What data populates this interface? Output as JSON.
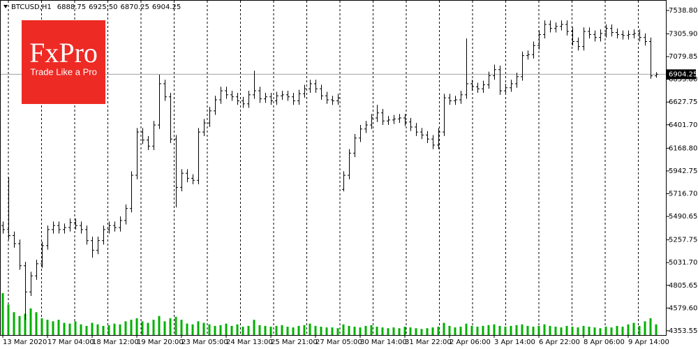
{
  "logo": {
    "brand": "FxPro",
    "tagline": "Trade Like a Pro"
  },
  "chart_data": {
    "type": "ohlc",
    "header": {
      "symbol": "BTCUSD,H1",
      "ohlc_printed": [
        "6888.75",
        "6925.50",
        "6870.25",
        "6904.25"
      ]
    },
    "categories": [
      "13 Mar 2020",
      null,
      null,
      null,
      null,
      null,
      null,
      null,
      "17 Mar 04:00",
      null,
      null,
      null,
      null,
      null,
      null,
      null,
      "18 Mar 12:00",
      null,
      null,
      null,
      null,
      null,
      null,
      null,
      "19 Mar 20:00",
      null,
      null,
      null,
      null,
      null,
      null,
      null,
      "23 Mar 05:00",
      null,
      null,
      null,
      null,
      null,
      null,
      null,
      "24 Mar 13:00",
      null,
      null,
      null,
      null,
      null,
      null,
      null,
      "25 Mar 21:00",
      null,
      null,
      null,
      null,
      null,
      null,
      null,
      "27 Mar 05:00",
      null,
      null,
      null,
      null,
      null,
      null,
      null,
      "30 Mar 14:00",
      null,
      null,
      null,
      null,
      null,
      null,
      null,
      "31 Mar 22:00",
      null,
      null,
      null,
      null,
      null,
      null,
      null,
      "2 Apr 06:00",
      null,
      null,
      null,
      null,
      null,
      null,
      null,
      "3 Apr 14:00",
      null,
      null,
      null,
      null,
      null,
      null,
      null,
      "6 Apr 22:00",
      null,
      null,
      null,
      null,
      null,
      null,
      null,
      "8 Apr 06:00",
      null,
      null,
      null,
      null,
      null,
      null,
      null,
      "9 Apr 14:00",
      null,
      null,
      null,
      null,
      null
    ],
    "open": [
      5400,
      5360,
      5300,
      5220,
      5000,
      4740,
      4900,
      5020,
      5200,
      5360,
      5400,
      5360,
      5380,
      5430,
      5400,
      5360,
      5250,
      5155,
      5250,
      5360,
      5400,
      5380,
      5450,
      5570,
      5900,
      6330,
      6250,
      6190,
      6400,
      6810,
      6680,
      6260,
      5780,
      5920,
      5870,
      5850,
      6330,
      6420,
      6540,
      6650,
      6740,
      6700,
      6680,
      6640,
      6610,
      6700,
      6740,
      6660,
      6680,
      6640,
      6690,
      6700,
      6680,
      6640,
      6710,
      6760,
      6810,
      6760,
      6690,
      6650,
      6640,
      5760,
      5900,
      6120,
      6270,
      6360,
      6400,
      6470,
      6520,
      6440,
      6450,
      6460,
      6470,
      6430,
      6380,
      6330,
      6300,
      6260,
      6200,
      6330,
      6670,
      6640,
      6650,
      6700,
      6810,
      6780,
      6760,
      6800,
      6890,
      6950,
      6740,
      6770,
      6810,
      6880,
      7090,
      7100,
      7190,
      7300,
      7400,
      7360,
      7380,
      7400,
      7330,
      7230,
      7180,
      7330,
      7300,
      7270,
      7310,
      7360,
      7320,
      7300,
      7290,
      7300,
      7310,
      7270,
      7230,
      6888.75
    ],
    "high": [
      5440,
      5880,
      5340,
      5260,
      5040,
      4940,
      5060,
      5240,
      5400,
      5440,
      5440,
      5420,
      5470,
      5470,
      5440,
      5400,
      5290,
      5290,
      5400,
      5440,
      5440,
      5490,
      5610,
      5940,
      6370,
      6370,
      6290,
      6440,
      6900,
      6850,
      6720,
      6300,
      5960,
      5960,
      5910,
      6370,
      6460,
      6580,
      6690,
      6780,
      6780,
      6740,
      6720,
      6680,
      6740,
      6940,
      6780,
      6720,
      6720,
      6730,
      6740,
      6740,
      6720,
      6750,
      6800,
      6850,
      6850,
      6800,
      6730,
      6690,
      6710,
      5940,
      6160,
      6310,
      6400,
      6440,
      6510,
      6600,
      6560,
      6490,
      6500,
      6510,
      6510,
      6470,
      6420,
      6370,
      6340,
      6300,
      6370,
      6710,
      6710,
      6690,
      6740,
      7260,
      6850,
      6820,
      6840,
      6930,
      7000,
      6990,
      6810,
      6850,
      6920,
      7130,
      7140,
      7230,
      7340,
      7440,
      7440,
      7420,
      7440,
      7440,
      7370,
      7270,
      7370,
      7370,
      7340,
      7350,
      7400,
      7400,
      7360,
      7340,
      7340,
      7350,
      7350,
      7310,
      7270,
      6925.5
    ],
    "low": [
      5320,
      5260,
      5180,
      4960,
      4460,
      4700,
      4860,
      4980,
      5160,
      5320,
      5320,
      5320,
      5340,
      5360,
      5320,
      5210,
      5080,
      5115,
      5210,
      5320,
      5340,
      5340,
      5410,
      5530,
      5860,
      6210,
      6150,
      6150,
      6360,
      6640,
      6220,
      5580,
      5740,
      5830,
      5810,
      5810,
      6290,
      6380,
      6500,
      6610,
      6660,
      6640,
      6600,
      6570,
      6570,
      6660,
      6620,
      6620,
      6600,
      6600,
      6650,
      6640,
      6600,
      6600,
      6670,
      6720,
      6720,
      6650,
      6610,
      6600,
      6600,
      5740,
      5860,
      6080,
      6230,
      6320,
      6360,
      6430,
      6400,
      6400,
      6410,
      6420,
      6390,
      6340,
      6290,
      6260,
      6220,
      6160,
      6160,
      6290,
      6600,
      6600,
      6610,
      6660,
      6740,
      6720,
      6720,
      6760,
      6850,
      6700,
      6700,
      6730,
      6770,
      6840,
      7050,
      7060,
      7150,
      7260,
      7320,
      7320,
      7340,
      7290,
      7190,
      7140,
      7140,
      7260,
      7230,
      7230,
      7270,
      7280,
      7260,
      7250,
      7250,
      7260,
      7230,
      7190,
      6860,
      6870.25
    ],
    "close": [
      5360,
      5300,
      5220,
      5000,
      4740,
      4900,
      5020,
      5200,
      5360,
      5400,
      5360,
      5380,
      5430,
      5400,
      5360,
      5250,
      5155,
      5250,
      5360,
      5400,
      5380,
      5450,
      5570,
      5900,
      6330,
      6250,
      6190,
      6400,
      6810,
      6680,
      6260,
      5780,
      5920,
      5870,
      5850,
      6330,
      6420,
      6540,
      6650,
      6740,
      6700,
      6680,
      6640,
      6610,
      6700,
      6740,
      6660,
      6680,
      6640,
      6690,
      6700,
      6680,
      6640,
      6710,
      6760,
      6810,
      6760,
      6690,
      6650,
      6640,
      6670,
      5900,
      6120,
      6270,
      6360,
      6400,
      6470,
      6520,
      6440,
      6450,
      6460,
      6470,
      6430,
      6380,
      6330,
      6300,
      6260,
      6200,
      6330,
      6670,
      6640,
      6650,
      6700,
      6810,
      6780,
      6760,
      6800,
      6890,
      6950,
      6740,
      6770,
      6810,
      6880,
      7090,
      7100,
      7190,
      7300,
      7400,
      7360,
      7380,
      7400,
      7330,
      7230,
      7180,
      7330,
      7300,
      7270,
      7310,
      7360,
      7320,
      7300,
      7290,
      7300,
      7310,
      7270,
      7230,
      6888.75,
      6904.25
    ],
    "volume": [
      55,
      40,
      30,
      25,
      28,
      35,
      30,
      22,
      20,
      18,
      20,
      16,
      15,
      18,
      14,
      12,
      16,
      14,
      12,
      13,
      15,
      14,
      18,
      20,
      22,
      18,
      16,
      20,
      25,
      18,
      22,
      24,
      20,
      15,
      14,
      18,
      16,
      14,
      12,
      13,
      15,
      12,
      14,
      11,
      12,
      20,
      13,
      12,
      11,
      12,
      13,
      11,
      10,
      12,
      13,
      15,
      12,
      11,
      10,
      10,
      9,
      14,
      12,
      11,
      10,
      12,
      13,
      11,
      10,
      9,
      10,
      9,
      11,
      10,
      9,
      8,
      9,
      10,
      11,
      16,
      12,
      10,
      11,
      15,
      12,
      11,
      12,
      13,
      14,
      12,
      11,
      12,
      13,
      14,
      12,
      11,
      12,
      14,
      12,
      11,
      10,
      12,
      11,
      10,
      12,
      11,
      10,
      9,
      11,
      10,
      12,
      11,
      14,
      16,
      12,
      18,
      22,
      14
    ],
    "bar_color": "#000000",
    "volume_color": "#00b000",
    "ylim": [
      4325,
      7608
    ],
    "yticks": [
      {
        "value": 7538.8,
        "label": "7538.80"
      },
      {
        "value": 7305.9,
        "label": "7305.90"
      },
      7079.85,
      {
        "value": 6853.8,
        "label": "6853.80"
      },
      6627.75,
      {
        "value": 6401.7,
        "label": "6401.70"
      },
      {
        "value": 6168.8,
        "label": "6168.80"
      },
      5942.75,
      {
        "value": 5716.7,
        "label": "5716.70"
      },
      5490.65,
      5257.75,
      {
        "value": 5031.7,
        "label": "5031.70"
      },
      4805.65,
      {
        "value": 4579.6,
        "label": "4579.60"
      },
      4353.55
    ]
  }
}
